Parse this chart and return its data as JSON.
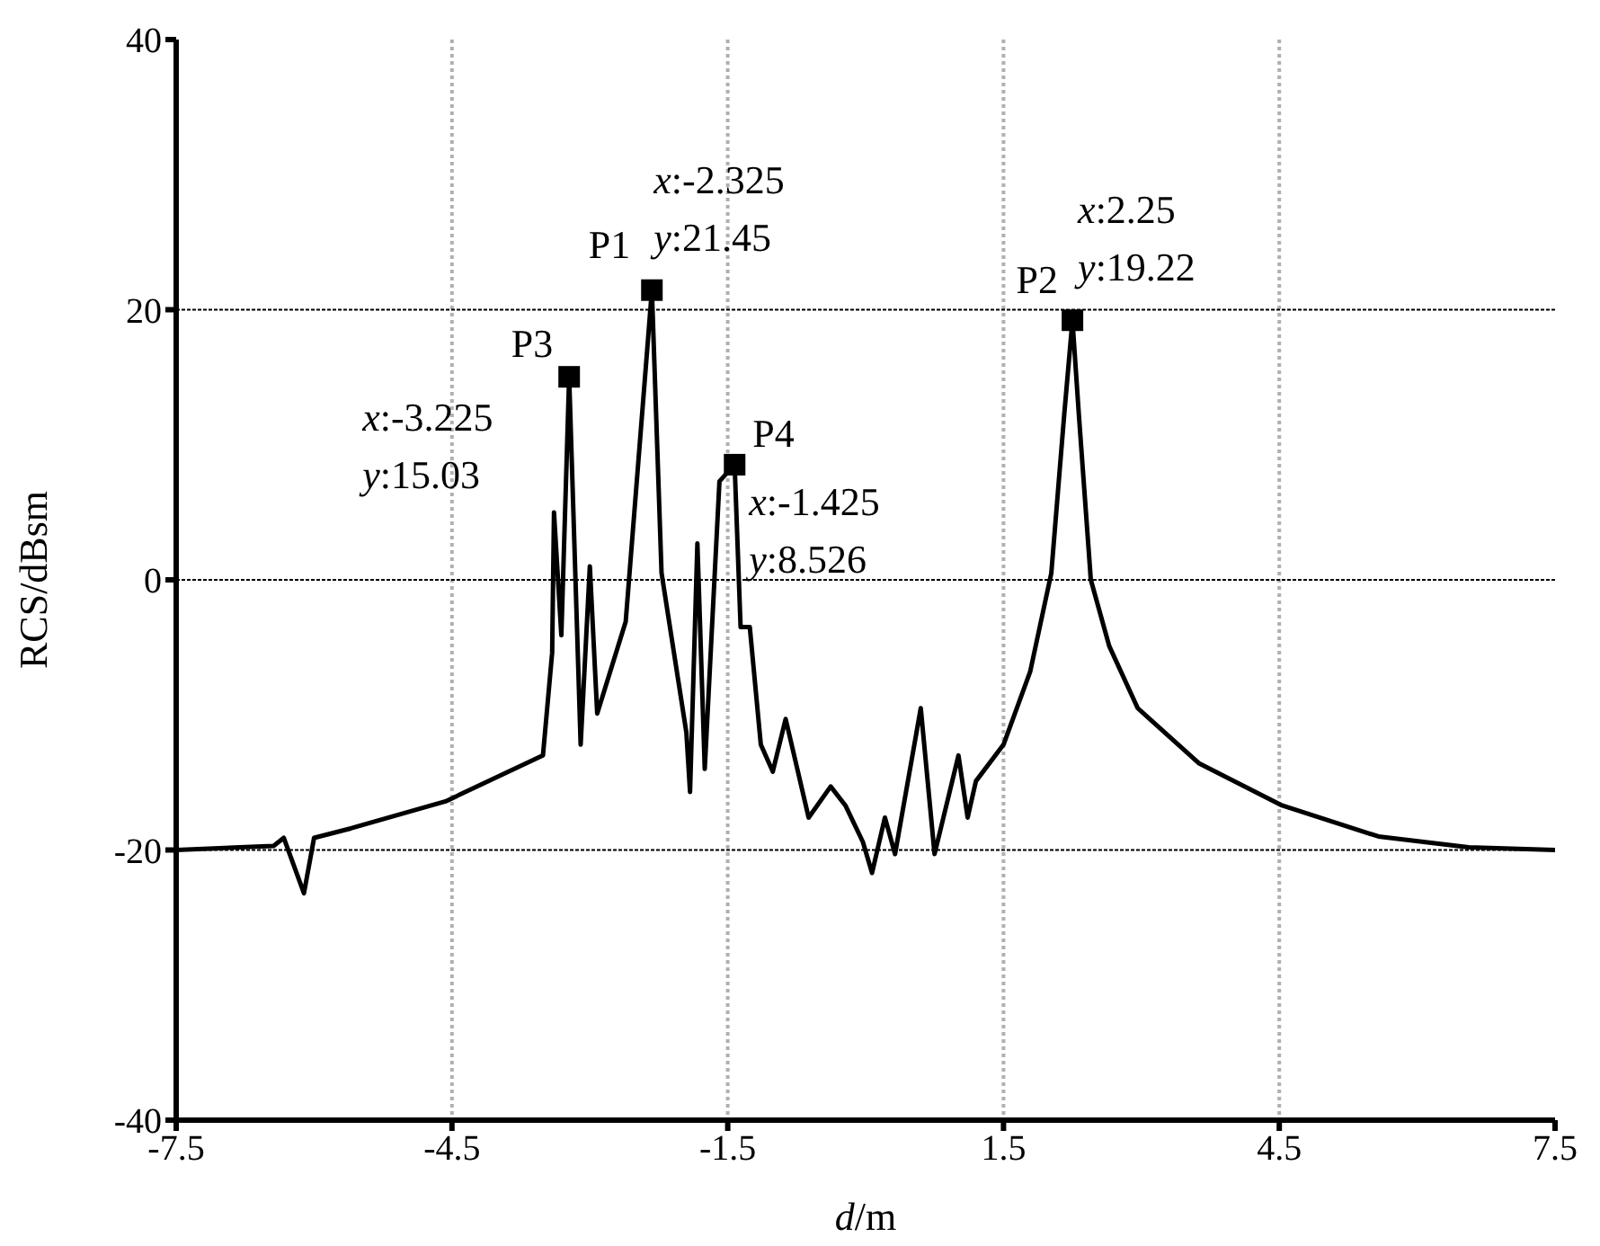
{
  "chart_data": {
    "type": "line",
    "xlabel": "d/m",
    "ylabel": "RCS/dBsm",
    "xlim": [
      -7.5,
      7.5
    ],
    "xticks": [
      -7.5,
      -4.5,
      -1.5,
      1.5,
      4.5,
      7.5
    ],
    "ylim": [
      -40,
      40
    ],
    "yticks": [
      -40,
      -20,
      0,
      20,
      40
    ],
    "grid": true,
    "legend": false,
    "series": [
      {
        "color": "#000000",
        "marker": "none",
        "line_style": "solid",
        "x": [
          -7.5,
          -6.44,
          -6.33,
          -6.11,
          -6.0,
          -5.6,
          -4.57,
          -3.51,
          -3.41,
          -3.39,
          -3.31,
          -3.225,
          -3.1,
          -3.0,
          -2.92,
          -2.61,
          -2.325,
          -2.22,
          -1.95,
          -1.91,
          -1.83,
          -1.75,
          -1.59,
          -1.425,
          -1.36,
          -1.26,
          -1.14,
          -1.01,
          -0.87,
          -0.62,
          -0.38,
          -0.22,
          -0.03,
          0.07,
          0.21,
          0.32,
          0.6,
          0.75,
          1.01,
          1.11,
          1.2,
          1.5,
          1.79,
          2.02,
          2.16,
          2.25,
          2.32,
          2.45,
          2.65,
          2.96,
          3.63,
          4.53,
          5.58,
          6.56,
          7.5
        ],
        "values": [
          -20,
          -19.7,
          -19.1,
          -23.2,
          -19.1,
          -18.4,
          -16.4,
          -13.0,
          -5.4,
          5.0,
          -4.1,
          15.03,
          -12.2,
          1.0,
          -9.9,
          -3.1,
          21.45,
          0.5,
          -11.3,
          -15.7,
          2.7,
          -14,
          7.3,
          8.526,
          -3.5,
          -3.5,
          -12.2,
          -14.2,
          -10.3,
          -17.6,
          -15.3,
          -16.7,
          -19.4,
          -21.7,
          -17.6,
          -20.3,
          -9.5,
          -20.3,
          -13.0,
          -17.6,
          -14.9,
          -12.2,
          -6.8,
          0.5,
          12.2,
          19.22,
          12.2,
          0,
          -4.9,
          -9.5,
          -13.6,
          -16.7,
          -19.0,
          -19.8,
          -20
        ]
      },
      {
        "type": "scatter",
        "color": "#000000",
        "marker": "square",
        "x": [
          -2.325,
          2.25,
          -3.225,
          -1.425
        ],
        "values": [
          21.45,
          19.22,
          15.03,
          8.526
        ]
      }
    ],
    "annotations": [
      {
        "text": "P1",
        "x": -2.325,
        "y": 21.45
      },
      {
        "text": "x:-2.325 y:21.45",
        "x": -2.325,
        "y": 21.45
      },
      {
        "text": "P2",
        "x": 2.25,
        "y": 19.22
      },
      {
        "text": "x:2.25 y:19.22",
        "x": 2.25,
        "y": 19.22
      },
      {
        "text": "P3",
        "x": -3.225,
        "y": 15.03
      },
      {
        "text": "x:-3.225 y:15.03",
        "x": -3.225,
        "y": 15.03
      },
      {
        "text": "P4",
        "x": -1.425,
        "y": 8.526
      },
      {
        "text": "x:-1.425 y:8.526",
        "x": -1.425,
        "y": 8.526
      }
    ]
  }
}
